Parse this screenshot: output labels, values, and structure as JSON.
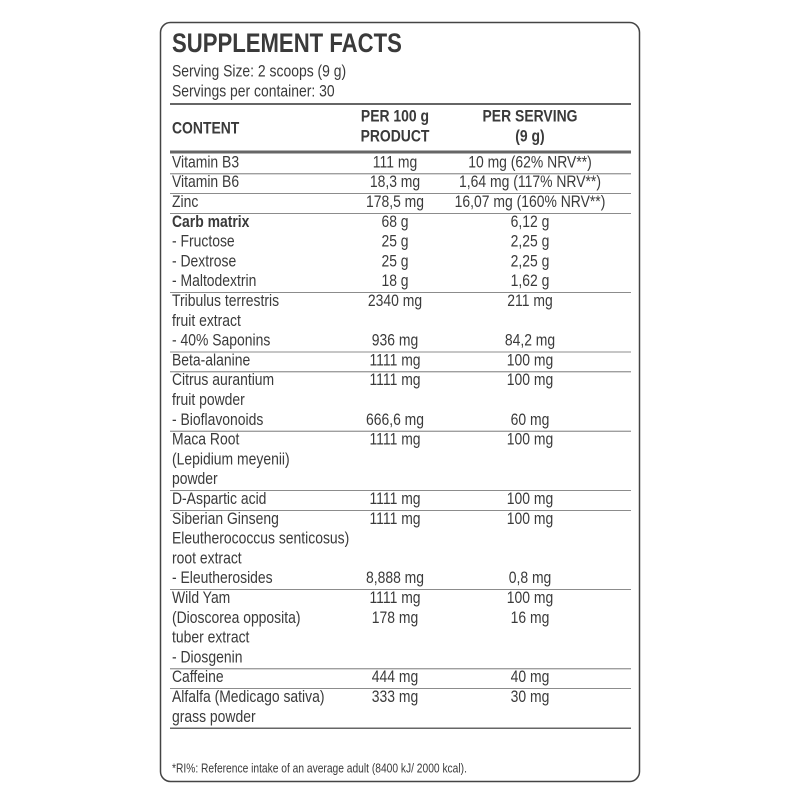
{
  "header": {
    "title": "SUPPLEMENT FACTS",
    "serving_size": "Serving Size: 2 scoops (9 g)",
    "servings_per_container": "Servings per container: 30"
  },
  "table": {
    "columns": [
      [
        "CONTENT"
      ],
      [
        "PER 100 g",
        "PRODUCT"
      ],
      [
        "PER SERVING",
        "(9 g)"
      ]
    ],
    "rows": [
      {
        "lines": [
          [
            "Vitamin B3",
            "111 mg",
            "10 mg  (62% NRV**)"
          ]
        ]
      },
      {
        "lines": [
          [
            "Vitamin B6",
            "18,3 mg",
            "1,64 mg  (117% NRV**)"
          ]
        ]
      },
      {
        "lines": [
          [
            "Zinc",
            "178,5 mg",
            "16,07 mg  (160% NRV**)"
          ]
        ]
      },
      {
        "lines": [
          [
            "Carb matrix",
            "68 g",
            "6,12 g"
          ],
          [
            "- Fructose",
            "25 g",
            "2,25 g"
          ],
          [
            "- Dextrose",
            "25 g",
            "2,25 g"
          ],
          [
            "- Maltodextrin",
            "18 g",
            "1,62 g"
          ]
        ],
        "bold": true
      },
      {
        "lines": [
          [
            "Tribulus terrestris",
            "2340 mg",
            "211 mg"
          ],
          [
            "fruit extract"
          ],
          [
            "  - 40% Saponins",
            "936 mg",
            "84,2 mg"
          ]
        ]
      },
      {
        "lines": [
          [
            "Beta-alanine",
            "1111 mg",
            "100 mg"
          ]
        ]
      },
      {
        "lines": [
          [
            "Citrus aurantium",
            "1111 mg",
            "100 mg"
          ],
          [
            "fruit powder"
          ],
          [
            "  - Bioflavonoids",
            "666,6 mg",
            "60 mg"
          ]
        ]
      },
      {
        "lines": [
          [
            "Maca Root",
            "1111 mg",
            "100 mg"
          ],
          [
            "(Lepidium meyenii)"
          ],
          [
            "powder"
          ]
        ]
      },
      {
        "lines": [
          [
            "D-Aspartic acid",
            "1111 mg",
            "100 mg"
          ]
        ]
      },
      {
        "lines": [
          [
            "Siberian Ginseng",
            "1111 mg",
            "100 mg"
          ],
          [
            "Eleutherococcus senticosus)"
          ],
          [
            "root extract"
          ],
          [
            "  - Eleutherosides",
            "8,888 mg",
            "0,8 mg"
          ]
        ]
      },
      {
        "lines": [
          [
            "Wild Yam",
            "1111 mg",
            "100 mg"
          ],
          [
            "(Dioscorea opposita)",
            "178 mg",
            "16 mg"
          ],
          [
            "tuber extract"
          ],
          [
            "  - Diosgenin"
          ]
        ]
      },
      {
        "lines": [
          [
            "Caffeine",
            "444 mg",
            "40 mg"
          ]
        ]
      },
      {
        "lines": [
          [
            "Alfalfa (Medicago sativa)",
            "333 mg",
            "30 mg"
          ],
          [
            "grass powder"
          ]
        ]
      }
    ]
  },
  "footnote": "*RI%: Reference intake of an average adult (8400 kJ/ 2000 kcal)."
}
